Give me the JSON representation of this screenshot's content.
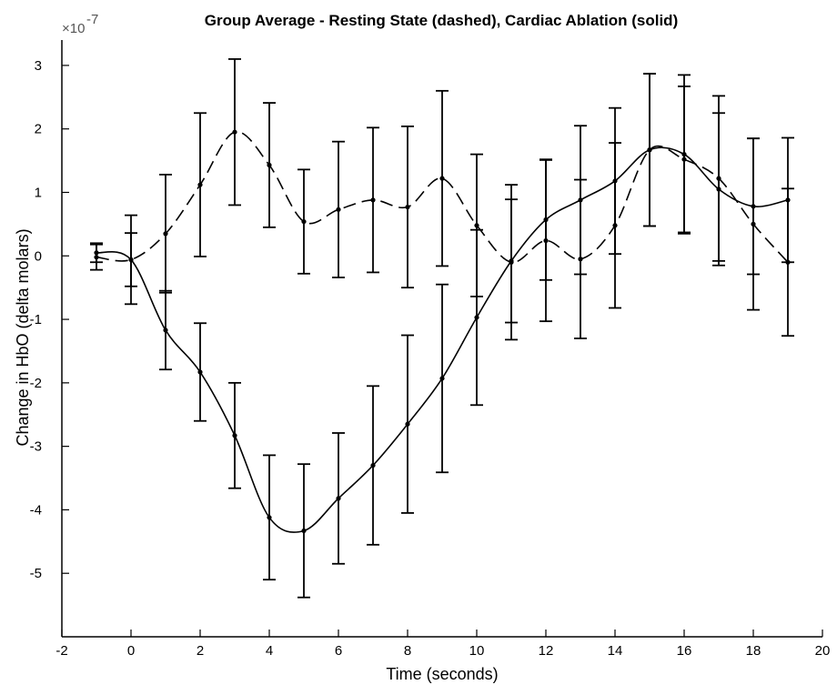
{
  "chart_data": {
    "type": "line",
    "title": "Group Average - Resting State (dashed), Cardiac Ablation (solid)",
    "xlabel": "Time (seconds)",
    "ylabel": "Change in HbO (delta molars)",
    "xlim": [
      -2,
      20
    ],
    "ylim": [
      -6,
      3.4
    ],
    "x_ticks": [
      -2,
      0,
      2,
      4,
      6,
      8,
      10,
      12,
      14,
      16,
      18,
      20
    ],
    "y_ticks": [
      -5,
      -4,
      -3,
      -2,
      -1,
      0,
      1,
      2,
      3
    ],
    "y_exponent_prefix": "×10",
    "y_exponent_power": "-7",
    "grid": false,
    "series": [
      {
        "style": "dashed",
        "x": [
          -1,
          0,
          1,
          2,
          3,
          4,
          5,
          6,
          7,
          8,
          9,
          10,
          11,
          12,
          13,
          14,
          15,
          16,
          17,
          18,
          19
        ],
        "y": [
          -0.02,
          -0.06,
          0.35,
          1.12,
          1.95,
          1.43,
          0.54,
          0.73,
          0.88,
          0.77,
          1.22,
          0.48,
          -0.1,
          0.24,
          -0.05,
          0.48,
          1.67,
          1.52,
          1.22,
          0.5,
          -0.1
        ],
        "err": [
          0.2,
          0.7,
          0.93,
          1.13,
          1.15,
          0.98,
          0.82,
          1.07,
          1.14,
          1.27,
          1.38,
          1.12,
          1.22,
          1.27,
          1.25,
          1.3,
          1.2,
          1.15,
          1.3,
          1.35,
          1.16
        ]
      },
      {
        "style": "solid",
        "x": [
          -1,
          0,
          1,
          2,
          3,
          4,
          5,
          6,
          7,
          8,
          9,
          10,
          11,
          12,
          13,
          14,
          15,
          16,
          17,
          18,
          19
        ],
        "y": [
          0.05,
          -0.06,
          -1.17,
          -1.83,
          -2.83,
          -4.12,
          -4.33,
          -3.82,
          -3.3,
          -2.65,
          -1.93,
          -0.97,
          -0.08,
          0.57,
          0.88,
          1.18,
          1.67,
          1.6,
          1.05,
          0.78,
          0.88
        ],
        "err": [
          0.15,
          0.42,
          0.62,
          0.77,
          0.83,
          0.98,
          1.05,
          1.03,
          1.25,
          1.4,
          1.48,
          1.38,
          0.97,
          0.95,
          1.17,
          1.15,
          1.2,
          1.25,
          1.2,
          1.07,
          0.98
        ]
      }
    ]
  }
}
